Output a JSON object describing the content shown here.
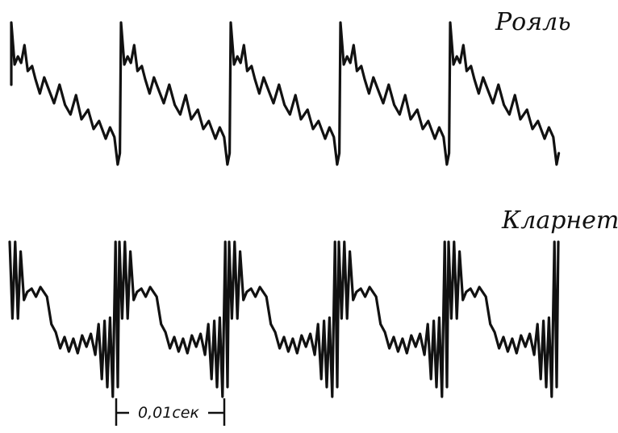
{
  "labels": {
    "piano": "Рояль",
    "clarinet": "Кларнет"
  },
  "scale_bar": {
    "label": "0,01сек"
  },
  "colors": {
    "ink": "#111111",
    "paper": "#ffffff"
  }
}
